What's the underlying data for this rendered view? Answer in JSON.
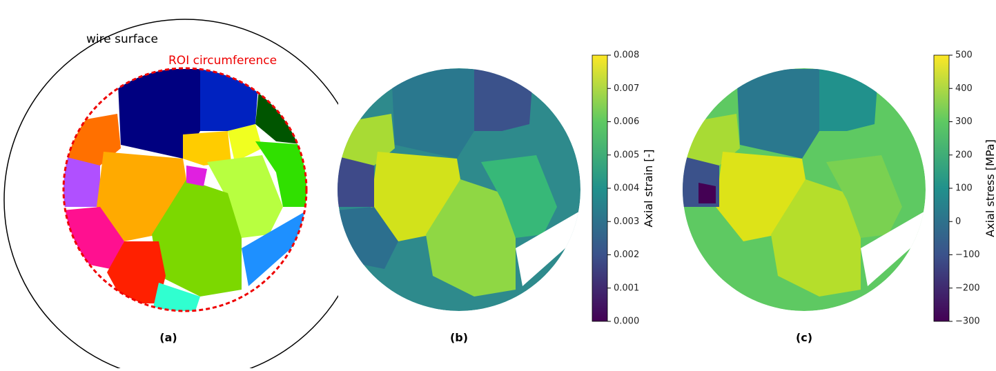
{
  "panels": [
    {
      "label": "(a)",
      "annotations": [
        "wire surface",
        "ROI circumference"
      ]
    },
    {
      "label": "(b)",
      "colorbar": {
        "label": "Axial strain [-]",
        "lim": [
          0,
          0.008
        ],
        "ticks": [
          {
            "value": 0,
            "label": "0.000"
          },
          0.001,
          0.002,
          0.003,
          0.004,
          0.005,
          0.006,
          0.007,
          0.008
        ]
      }
    },
    {
      "label": "(c)",
      "colorbar": {
        "label": "Axial stress [MPa]",
        "lim": [
          -300,
          500
        ],
        "ticks": [
          {
            "value": -300,
            "label": "−300"
          },
          {
            "value": -200,
            "label": "−200"
          },
          {
            "value": -100,
            "label": "−100"
          },
          0,
          100,
          200,
          300,
          400,
          500
        ]
      }
    }
  ]
}
